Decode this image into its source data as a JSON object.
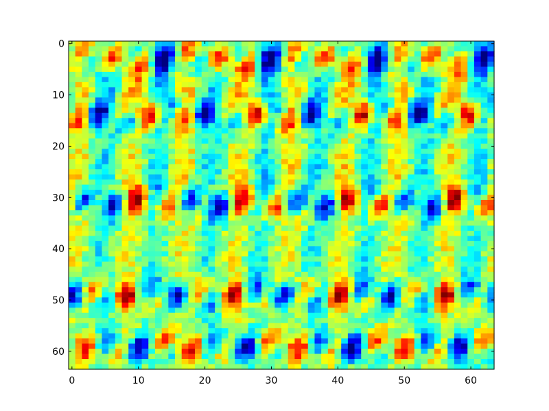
{
  "chart_data": {
    "type": "heatmap",
    "title": "",
    "xlabel": "",
    "ylabel": "",
    "grid": false,
    "legend": "none",
    "colormap": "jet",
    "shape": [
      64,
      64
    ],
    "xlim": [
      -0.5,
      63.5
    ],
    "ylim": [
      63.5,
      -0.5
    ],
    "y_axis_inverted": true,
    "value_range": [
      -1,
      1
    ],
    "x_ticks": [
      0,
      10,
      20,
      30,
      40,
      50,
      60
    ],
    "y_ticks": [
      0,
      10,
      20,
      30,
      40,
      50,
      60
    ],
    "x_tick_labels": [
      "0",
      "10",
      "20",
      "30",
      "40",
      "50",
      "60"
    ],
    "y_tick_labels": [
      "0",
      "10",
      "20",
      "30",
      "40",
      "50",
      "60"
    ],
    "pattern": {
      "description_of_values": "periodic pattern of paired red (high) and blue (low) blobs on a green/cyan background",
      "column_period": 8,
      "band_rows": [
        3,
        14,
        31,
        49,
        59
      ],
      "band_widths": [
        3,
        3,
        3,
        3,
        3
      ]
    },
    "background_colors": {
      "mid": "#80ff7f",
      "low": "#00ffff",
      "high": "#ffff00"
    }
  }
}
